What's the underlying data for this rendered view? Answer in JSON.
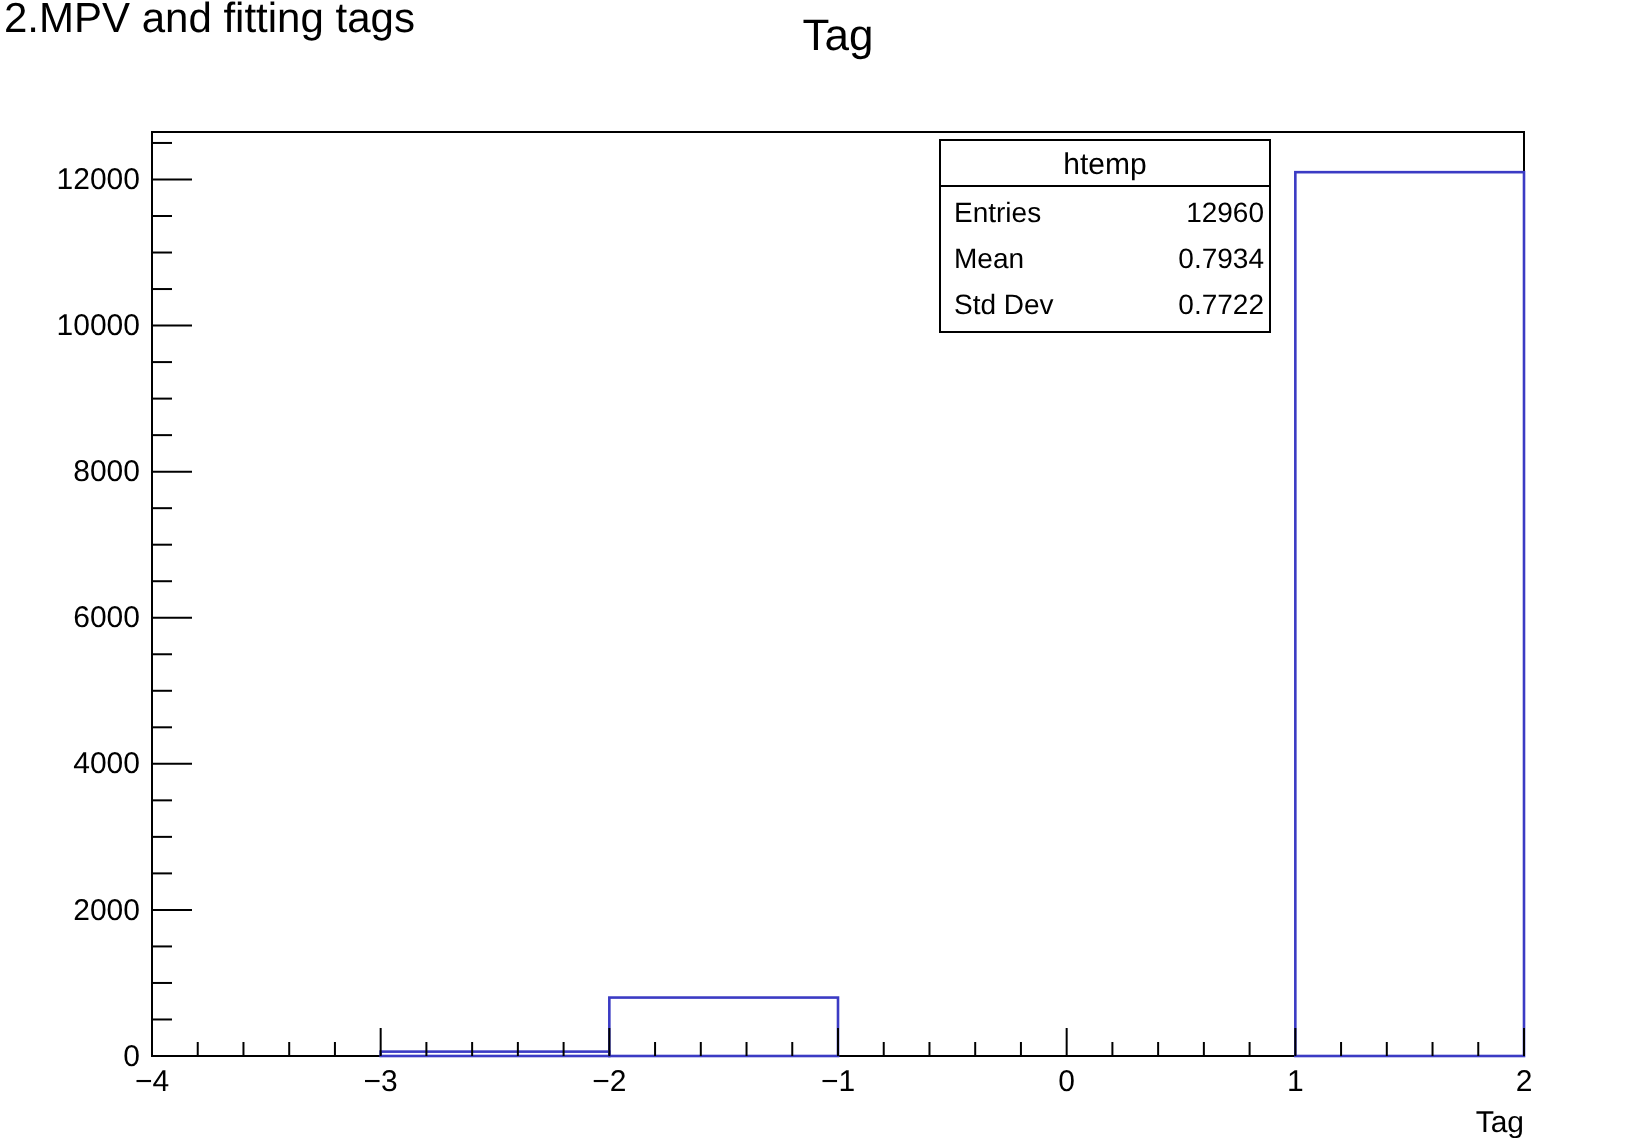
{
  "chart_data": {
    "type": "histogram",
    "title": "Tag",
    "xlabel": "Tag",
    "annotations": [
      "2.MPV and fitting tags",
      "htemp",
      "Entries",
      "12960",
      "Mean",
      "0.7934",
      "Std Dev",
      "0.7722"
    ],
    "bins": [
      -4,
      -3,
      -2,
      -1,
      0,
      1,
      2
    ],
    "values": [
      0,
      60,
      800,
      0,
      0,
      12100
    ],
    "color": "#3b3bc4",
    "xlim": [
      -4,
      2
    ],
    "xticks": [
      {
        "value": -4,
        "label": "−4"
      },
      {
        "value": -3,
        "label": "−3"
      },
      {
        "value": -2,
        "label": "−2"
      },
      {
        "value": -1,
        "label": "−1"
      },
      0,
      1,
      2
    ],
    "ylim": [
      0,
      12650
    ],
    "yticks": [
      0,
      2000,
      4000,
      6000,
      8000,
      10000,
      12000
    ],
    "grid": false
  }
}
